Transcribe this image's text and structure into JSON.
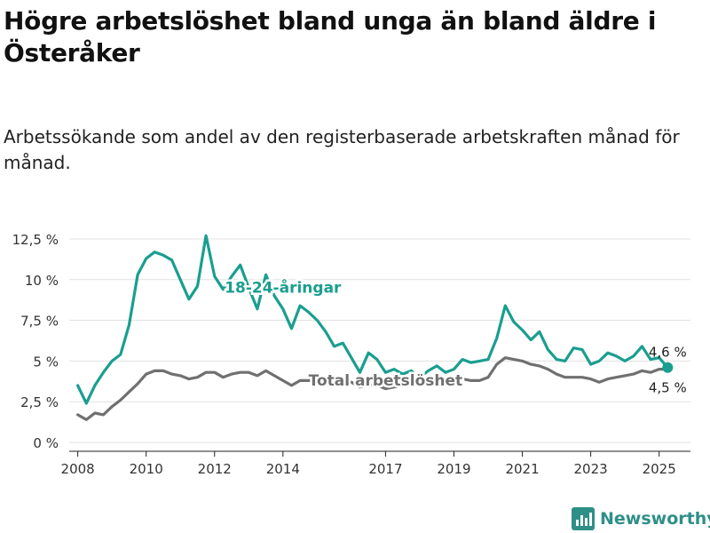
{
  "title": "Högre arbetslöshet bland unga än bland äldre i Österåker",
  "subtitle": "Arbetssökande som andel av den registerbaserade arbetskraften månad för månad.",
  "brand": {
    "name": "Newsworthy",
    "icon": "newsworthy-logo-icon",
    "color": "#2e8f88"
  },
  "chart_data": {
    "type": "line",
    "title": "",
    "xlabel": "",
    "ylabel": "",
    "ylim": [
      0,
      12.5
    ],
    "xlim": [
      "2007-10",
      "2025-12"
    ],
    "grid": true,
    "yticks": [
      {
        "value": 0,
        "label": "0 %"
      },
      {
        "value": 2.5,
        "label": "2,5 %"
      },
      {
        "value": 5,
        "label": "5 %"
      },
      {
        "value": 7.5,
        "label": "7,5 %"
      },
      {
        "value": 10,
        "label": "10 %"
      },
      {
        "value": 12.5,
        "label": "12,5 %"
      }
    ],
    "xticks": [
      {
        "value": "2008-01",
        "label": "2008"
      },
      {
        "value": "2010-01",
        "label": "2010"
      },
      {
        "value": "2012-01",
        "label": "2012"
      },
      {
        "value": "2014-01",
        "label": "2014"
      },
      {
        "value": "2017-01",
        "label": "2017"
      },
      {
        "value": "2019-01",
        "label": "2019"
      },
      {
        "value": "2021-01",
        "label": "2021"
      },
      {
        "value": "2023-01",
        "label": "2023"
      },
      {
        "value": "2025-01",
        "label": "2025"
      }
    ],
    "series": [
      {
        "name": "18-24-åringar",
        "color": "#1a9e90",
        "label_date": "2014-01",
        "label_value": 9.2,
        "end_label": "4,6 %",
        "points": [
          [
            "2008-01",
            3.5
          ],
          [
            "2008-04",
            2.4
          ],
          [
            "2008-07",
            3.5
          ],
          [
            "2008-10",
            4.3
          ],
          [
            "2009-01",
            5.0
          ],
          [
            "2009-04",
            5.4
          ],
          [
            "2009-07",
            7.2
          ],
          [
            "2009-10",
            10.3
          ],
          [
            "2010-01",
            11.3
          ],
          [
            "2010-04",
            11.7
          ],
          [
            "2010-07",
            11.5
          ],
          [
            "2010-10",
            11.2
          ],
          [
            "2011-01",
            10.0
          ],
          [
            "2011-04",
            8.8
          ],
          [
            "2011-07",
            9.6
          ],
          [
            "2011-10",
            12.7
          ],
          [
            "2012-01",
            10.2
          ],
          [
            "2012-04",
            9.4
          ],
          [
            "2012-07",
            10.2
          ],
          [
            "2012-10",
            10.9
          ],
          [
            "2013-01",
            9.5
          ],
          [
            "2013-04",
            8.2
          ],
          [
            "2013-07",
            10.3
          ],
          [
            "2013-10",
            9.0
          ],
          [
            "2014-01",
            8.2
          ],
          [
            "2014-04",
            7.0
          ],
          [
            "2014-07",
            8.4
          ],
          [
            "2014-10",
            8.0
          ],
          [
            "2015-01",
            7.5
          ],
          [
            "2015-04",
            6.8
          ],
          [
            "2015-07",
            5.9
          ],
          [
            "2015-10",
            6.1
          ],
          [
            "2016-01",
            5.2
          ],
          [
            "2016-04",
            4.3
          ],
          [
            "2016-07",
            5.5
          ],
          [
            "2016-10",
            5.1
          ],
          [
            "2017-01",
            4.3
          ],
          [
            "2017-04",
            4.5
          ],
          [
            "2017-07",
            4.2
          ],
          [
            "2017-10",
            4.4
          ],
          [
            "2018-01",
            4.0
          ],
          [
            "2018-04",
            4.4
          ],
          [
            "2018-07",
            4.7
          ],
          [
            "2018-10",
            4.3
          ],
          [
            "2019-01",
            4.5
          ],
          [
            "2019-04",
            5.1
          ],
          [
            "2019-07",
            4.9
          ],
          [
            "2019-10",
            5.0
          ],
          [
            "2020-01",
            5.1
          ],
          [
            "2020-04",
            6.4
          ],
          [
            "2020-07",
            8.4
          ],
          [
            "2020-10",
            7.4
          ],
          [
            "2021-01",
            6.9
          ],
          [
            "2021-04",
            6.3
          ],
          [
            "2021-07",
            6.8
          ],
          [
            "2021-10",
            5.7
          ],
          [
            "2022-01",
            5.1
          ],
          [
            "2022-04",
            5.0
          ],
          [
            "2022-07",
            5.8
          ],
          [
            "2022-10",
            5.7
          ],
          [
            "2023-01",
            4.8
          ],
          [
            "2023-04",
            5.0
          ],
          [
            "2023-07",
            5.5
          ],
          [
            "2023-10",
            5.3
          ],
          [
            "2024-01",
            5.0
          ],
          [
            "2024-04",
            5.3
          ],
          [
            "2024-07",
            5.9
          ],
          [
            "2024-10",
            5.1
          ],
          [
            "2025-01",
            5.2
          ],
          [
            "2025-04",
            4.6
          ]
        ]
      },
      {
        "name": "Total arbetslöshet",
        "color": "#707070",
        "label_date": "2017-01",
        "label_value": 3.5,
        "end_label": "4,5 %",
        "points": [
          [
            "2008-01",
            1.7
          ],
          [
            "2008-04",
            1.4
          ],
          [
            "2008-07",
            1.8
          ],
          [
            "2008-10",
            1.7
          ],
          [
            "2009-01",
            2.2
          ],
          [
            "2009-04",
            2.6
          ],
          [
            "2009-07",
            3.1
          ],
          [
            "2009-10",
            3.6
          ],
          [
            "2010-01",
            4.2
          ],
          [
            "2010-04",
            4.4
          ],
          [
            "2010-07",
            4.4
          ],
          [
            "2010-10",
            4.2
          ],
          [
            "2011-01",
            4.1
          ],
          [
            "2011-04",
            3.9
          ],
          [
            "2011-07",
            4.0
          ],
          [
            "2011-10",
            4.3
          ],
          [
            "2012-01",
            4.3
          ],
          [
            "2012-04",
            4.0
          ],
          [
            "2012-07",
            4.2
          ],
          [
            "2012-10",
            4.3
          ],
          [
            "2013-01",
            4.3
          ],
          [
            "2013-04",
            4.1
          ],
          [
            "2013-07",
            4.4
          ],
          [
            "2013-10",
            4.1
          ],
          [
            "2014-01",
            3.8
          ],
          [
            "2014-04",
            3.5
          ],
          [
            "2014-07",
            3.8
          ],
          [
            "2014-10",
            3.8
          ],
          [
            "2015-01",
            3.8
          ],
          [
            "2015-04",
            3.6
          ],
          [
            "2015-07",
            3.5
          ],
          [
            "2015-10",
            3.7
          ],
          [
            "2016-01",
            3.7
          ],
          [
            "2016-04",
            3.4
          ],
          [
            "2016-07",
            3.5
          ],
          [
            "2016-10",
            3.5
          ],
          [
            "2017-01",
            3.3
          ],
          [
            "2017-04",
            3.4
          ],
          [
            "2017-07",
            3.5
          ],
          [
            "2017-10",
            3.6
          ],
          [
            "2018-01",
            3.6
          ],
          [
            "2018-04",
            3.8
          ],
          [
            "2018-07",
            4.0
          ],
          [
            "2018-10",
            3.7
          ],
          [
            "2019-01",
            3.7
          ],
          [
            "2019-04",
            3.9
          ],
          [
            "2019-07",
            3.8
          ],
          [
            "2019-10",
            3.8
          ],
          [
            "2020-01",
            4.0
          ],
          [
            "2020-04",
            4.8
          ],
          [
            "2020-07",
            5.2
          ],
          [
            "2020-10",
            5.1
          ],
          [
            "2021-01",
            5.0
          ],
          [
            "2021-04",
            4.8
          ],
          [
            "2021-07",
            4.7
          ],
          [
            "2021-10",
            4.5
          ],
          [
            "2022-01",
            4.2
          ],
          [
            "2022-04",
            4.0
          ],
          [
            "2022-07",
            4.0
          ],
          [
            "2022-10",
            4.0
          ],
          [
            "2023-01",
            3.9
          ],
          [
            "2023-04",
            3.7
          ],
          [
            "2023-07",
            3.9
          ],
          [
            "2023-10",
            4.0
          ],
          [
            "2024-01",
            4.1
          ],
          [
            "2024-04",
            4.2
          ],
          [
            "2024-07",
            4.4
          ],
          [
            "2024-10",
            4.3
          ],
          [
            "2025-01",
            4.5
          ],
          [
            "2025-04",
            4.5
          ]
        ]
      }
    ]
  }
}
